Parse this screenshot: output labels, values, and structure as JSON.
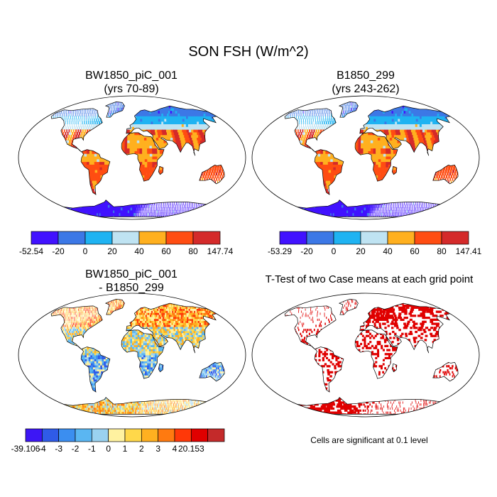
{
  "title": "SON FSH (W/m^2)",
  "colors": {
    "case_scale": [
      "#4112ff",
      "#3c78e6",
      "#1fb3f2",
      "#bfe3f2",
      "#ffb01f",
      "#ff4d12",
      "#d42a2a"
    ],
    "diff_scale": [
      "#3d16f5",
      "#2f5be8",
      "#3b8ef0",
      "#5ab6f2",
      "#9ad2f0",
      "#fff2a0",
      "#ffd84a",
      "#ffb020",
      "#ff7a10",
      "#ff3808",
      "#e00000",
      "#c42a2a"
    ],
    "significant": "#e00000",
    "land_outline": "#000000"
  },
  "panels": [
    {
      "id": "case1",
      "title_line1": "BW1850_piC_001",
      "title_line2": "(yrs 70-89)",
      "colorbar": {
        "labels": [
          "-52.54",
          "-20",
          "0",
          "20",
          "40",
          "60",
          "80",
          "147.74"
        ]
      }
    },
    {
      "id": "case2",
      "title_line1": "B1850_299",
      "title_line2": "(yrs 243-262)",
      "colorbar": {
        "labels": [
          "-53.29",
          "-20",
          "0",
          "20",
          "40",
          "60",
          "80",
          "147.41"
        ]
      }
    },
    {
      "id": "diff",
      "title_line1": "BW1850_piC_001",
      "title_line2": "- B1850_299",
      "colorbar": {
        "labels": [
          "-39.106",
          "-4",
          "-3",
          "-2",
          "-1",
          "0",
          "1",
          "2",
          "3",
          "4",
          "20.153"
        ]
      }
    },
    {
      "id": "ttest",
      "title_line1": "T-Test of two Case means at each grid point",
      "title_line2": "",
      "footnote": "Cells are significant at 0.1 level"
    }
  ]
}
